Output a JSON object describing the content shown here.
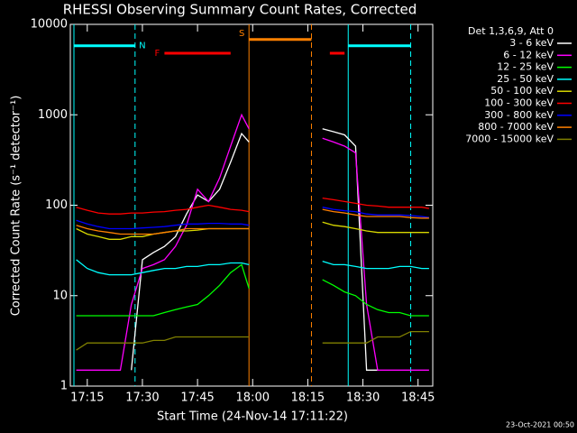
{
  "chart_data": {
    "type": "line",
    "title": "RHESSI Observing Summary Count Rates, Corrected",
    "x_label": "Start Time (24-Nov-14 17:11:22)",
    "y_label": "Corrected Count Rate (s⁻¹ detector⁻¹)",
    "legend_title": "Det 1,3,6,9, Att 0",
    "footer": "23-Oct-2021 00:50",
    "log_y": true,
    "xlim": [
      "17:11:22",
      "18:49"
    ],
    "xticks": [
      "17:15",
      "17:30",
      "17:45",
      "18:00",
      "18:15",
      "18:30",
      "18:45"
    ],
    "ylim": [
      1,
      10000
    ],
    "yticks": [
      1,
      10,
      100,
      1000,
      10000
    ],
    "x": [
      "17:12",
      "17:15",
      "17:18",
      "17:21",
      "17:24",
      "17:27",
      "17:30",
      "17:33",
      "17:36",
      "17:39",
      "17:42",
      "17:45",
      "17:48",
      "17:51",
      "17:54",
      "17:57",
      "17:59",
      "18:08",
      "18:19",
      "18:22",
      "18:25",
      "18:28",
      "18:31",
      "18:34",
      "18:37",
      "18:40",
      "18:43",
      "18:46",
      "18:48"
    ],
    "series": [
      {
        "name": "3 - 6 keV",
        "color": "#ffffff",
        "values": [
          null,
          null,
          null,
          null,
          null,
          1.5,
          25,
          30,
          35,
          45,
          80,
          130,
          110,
          150,
          300,
          620,
          500,
          null,
          700,
          650,
          600,
          450,
          1.5,
          1.5,
          null,
          null,
          null,
          null,
          null
        ]
      },
      {
        "name": "6 - 12 keV",
        "color": "#ff00ff",
        "values": [
          1.5,
          1.5,
          1.5,
          1.5,
          1.5,
          8,
          20,
          22,
          25,
          35,
          60,
          150,
          110,
          200,
          450,
          1000,
          700,
          null,
          550,
          500,
          450,
          380,
          8,
          1.5,
          1.5,
          1.5,
          1.5,
          1.5,
          1.5
        ]
      },
      {
        "name": "12 - 25 keV",
        "color": "#00ff00",
        "values": [
          6,
          6,
          6,
          6,
          6,
          6,
          6,
          6,
          6.5,
          7,
          7.5,
          8,
          10,
          13,
          18,
          22,
          12,
          null,
          15,
          13,
          11,
          10,
          8,
          7,
          6.5,
          6.5,
          6,
          6,
          6
        ]
      },
      {
        "name": "25 - 50 keV",
        "color": "#00ffff",
        "values": [
          25,
          20,
          18,
          17,
          17,
          17,
          18,
          19,
          20,
          20,
          21,
          21,
          22,
          22,
          23,
          23,
          22,
          null,
          24,
          22,
          22,
          21,
          20,
          20,
          20,
          21,
          21,
          20,
          20
        ]
      },
      {
        "name": "50 - 100 keV",
        "color": "#d8d800",
        "values": [
          55,
          48,
          45,
          42,
          42,
          45,
          45,
          48,
          50,
          52,
          52,
          53,
          55,
          55,
          55,
          55,
          55,
          null,
          65,
          60,
          58,
          55,
          52,
          50,
          50,
          50,
          50,
          50,
          50
        ]
      },
      {
        "name": "100 - 300 keV",
        "color": "#ff0000",
        "values": [
          95,
          88,
          82,
          80,
          80,
          82,
          82,
          84,
          85,
          88,
          90,
          95,
          100,
          95,
          90,
          88,
          85,
          null,
          120,
          115,
          110,
          105,
          100,
          98,
          95,
          95,
          95,
          95,
          92
        ]
      },
      {
        "name": "300 - 800 keV",
        "color": "#0000ff",
        "values": [
          68,
          62,
          58,
          55,
          55,
          55,
          56,
          57,
          58,
          60,
          62,
          62,
          63,
          63,
          62,
          62,
          60,
          null,
          95,
          90,
          87,
          85,
          80,
          78,
          78,
          78,
          77,
          75,
          73
        ]
      },
      {
        "name": "800 - 7000 keV",
        "color": "#ff8000",
        "values": [
          60,
          55,
          52,
          50,
          48,
          48,
          48,
          48,
          50,
          52,
          55,
          55,
          55,
          55,
          55,
          55,
          55,
          null,
          90,
          85,
          82,
          78,
          75,
          75,
          75,
          75,
          73,
          72,
          72
        ]
      },
      {
        "name": "7000 - 15000 keV",
        "color": "#808000",
        "values": [
          2.5,
          3,
          3,
          3,
          3,
          3,
          3,
          3.2,
          3.2,
          3.5,
          3.5,
          3.5,
          3.5,
          3.5,
          3.5,
          3.5,
          3.5,
          null,
          3,
          3,
          3,
          3,
          3,
          3.5,
          3.5,
          3.5,
          4,
          4,
          4
        ]
      }
    ],
    "annotations": [
      {
        "label": "N",
        "color": "#00ffff",
        "level": 5800,
        "vlines": true,
        "intervals": [
          [
            "17:11:22",
            "17:28"
          ],
          [
            "18:26",
            "18:43"
          ]
        ]
      },
      {
        "label": "F",
        "color": "#ff0000",
        "level": 4800,
        "vlines": false,
        "intervals": [
          [
            "17:36",
            "17:54"
          ],
          [
            "18:21",
            "18:25"
          ]
        ]
      },
      {
        "label": "S",
        "color": "#ff8000",
        "level": 6800,
        "vlines": true,
        "intervals": [
          [
            "17:59",
            "18:16"
          ]
        ]
      }
    ]
  }
}
